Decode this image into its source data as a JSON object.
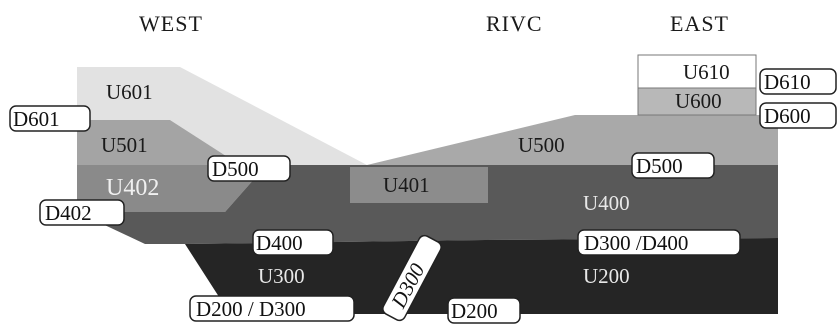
{
  "headers": {
    "west": "WEST",
    "rivc": "RIVC",
    "east": "EAST"
  },
  "units": {
    "u601": "U601",
    "u501": "U501",
    "u402": "U402",
    "u401": "U401",
    "u500": "U500",
    "u400": "U400",
    "u300": "U300",
    "u200": "U200",
    "u610": "U610",
    "u600": "U600"
  },
  "boundaries": {
    "d601": "D601",
    "d500_west": "D500",
    "d402": "D402",
    "d400": "D400",
    "d200_d300": "D200 / D300",
    "d300_vertical": "D300",
    "d200": "D200",
    "d500_east": "D500",
    "d300_d400": "D300 /D400",
    "d610": "D610",
    "d600": "D600"
  },
  "colors": {
    "u601": "#e2e2e2",
    "u501": "#a4a4a4",
    "u402": "#8a8a8a",
    "u401": "#8c8c8c",
    "u500": "#a9a9a9",
    "u400": "#595959",
    "u200_u300": "#252525",
    "u610": "#ffffff",
    "u600": "#b8b8b8"
  }
}
